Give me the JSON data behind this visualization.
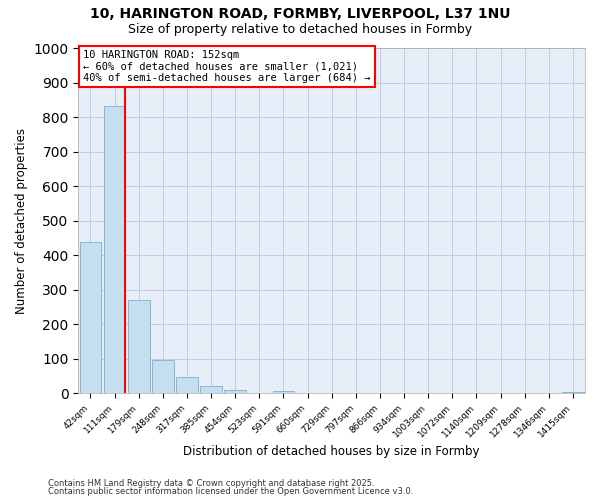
{
  "title_line1": "10, HARINGTON ROAD, FORMBY, LIVERPOOL, L37 1NU",
  "title_line2": "Size of property relative to detached houses in Formby",
  "xlabel": "Distribution of detached houses by size in Formby",
  "ylabel": "Number of detached properties",
  "bar_labels": [
    "42sqm",
    "111sqm",
    "179sqm",
    "248sqm",
    "317sqm",
    "385sqm",
    "454sqm",
    "523sqm",
    "591sqm",
    "660sqm",
    "729sqm",
    "797sqm",
    "866sqm",
    "934sqm",
    "1003sqm",
    "1072sqm",
    "1140sqm",
    "1209sqm",
    "1278sqm",
    "1346sqm",
    "1415sqm"
  ],
  "bar_values": [
    437,
    831,
    270,
    95,
    46,
    20,
    10,
    0,
    7,
    0,
    0,
    0,
    0,
    0,
    0,
    0,
    0,
    0,
    0,
    0,
    4
  ],
  "bar_color": "#c5dff0",
  "bar_edge_color": "#7ab0d0",
  "vline_x_index": 1,
  "vline_color": "red",
  "annotation_title": "10 HARINGTON ROAD: 152sqm",
  "annotation_line2": "← 60% of detached houses are smaller (1,021)",
  "annotation_line3": "40% of semi-detached houses are larger (684) →",
  "annotation_box_color": "white",
  "annotation_box_edge": "red",
  "ylim": [
    0,
    1000
  ],
  "yticks": [
    0,
    100,
    200,
    300,
    400,
    500,
    600,
    700,
    800,
    900,
    1000
  ],
  "footer_line1": "Contains HM Land Registry data © Crown copyright and database right 2025.",
  "footer_line2": "Contains public sector information licensed under the Open Government Licence v3.0.",
  "fig_bg_color": "#ffffff",
  "plot_bg_color": "#e8eef8",
  "grid_color": "#c0cce0"
}
